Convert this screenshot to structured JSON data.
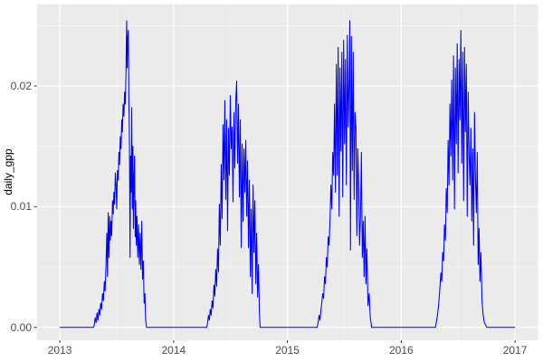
{
  "style": {
    "plot_background": "#FFFFFF",
    "panel_background": "#EBEBEB",
    "grid_major_color": "#FFFFFF",
    "grid_minor_color": "#FFFFFF",
    "line_color": "#0000FF",
    "tick_mark_color": "#333333",
    "tick_label_color": "#4D4D4D",
    "axis_title_color": "#000000"
  },
  "chart_data": {
    "type": "line",
    "title": "",
    "xlabel": "",
    "ylabel": "daily_gpp",
    "legend": "none",
    "grid": "major-and-minor",
    "xlim": [
      2012.798,
      2017.202
    ],
    "ylim": [
      -0.00107,
      0.02677
    ],
    "x_ticks": [
      2013,
      2014,
      2015,
      2016,
      2017
    ],
    "x_tick_labels": [
      "2013",
      "2014",
      "2015",
      "2016",
      "2017"
    ],
    "x_minor_ticks": [
      2013.5,
      2014.5,
      2015.5,
      2016.5
    ],
    "y_ticks": [
      0.0,
      0.01,
      0.02
    ],
    "y_tick_labels": [
      "0.00",
      "0.01",
      "0.02"
    ],
    "y_minor_ticks": [
      0.005,
      0.015,
      0.025
    ],
    "series": [
      {
        "name": "daily_gpp",
        "color": "#0000FF",
        "points": [
          [
            2013.0,
            0
          ],
          [
            2013.295,
            0
          ],
          [
            2013.303,
            0.0002
          ],
          [
            2013.311,
            0.0008
          ],
          [
            2013.319,
            0.0004
          ],
          [
            2013.327,
            0.0012
          ],
          [
            2013.335,
            0.0006
          ],
          [
            2013.343,
            0.0015
          ],
          [
            2013.351,
            0.001
          ],
          [
            2013.359,
            0.002
          ],
          [
            2013.367,
            0.0015
          ],
          [
            2013.375,
            0.0028
          ],
          [
            2013.383,
            0.0022
          ],
          [
            2013.391,
            0.0038
          ],
          [
            2013.398,
            0.003
          ],
          [
            2013.406,
            0.0052
          ],
          [
            2013.413,
            0.0078
          ],
          [
            2013.419,
            0.0042
          ],
          [
            2013.425,
            0.0095
          ],
          [
            2013.431,
            0.0058
          ],
          [
            2013.438,
            0.0092
          ],
          [
            2013.444,
            0.0072
          ],
          [
            2013.45,
            0.0088
          ],
          [
            2013.456,
            0.0076
          ],
          [
            2013.463,
            0.0105
          ],
          [
            2013.469,
            0.0094
          ],
          [
            2013.475,
            0.0112
          ],
          [
            2013.481,
            0.0102
          ],
          [
            2013.488,
            0.0128
          ],
          [
            2013.494,
            0.0118
          ],
          [
            2013.5,
            0.0098
          ],
          [
            2013.506,
            0.013
          ],
          [
            2013.513,
            0.0122
          ],
          [
            2013.519,
            0.0145
          ],
          [
            2013.525,
            0.0135
          ],
          [
            2013.531,
            0.0158
          ],
          [
            2013.538,
            0.0148
          ],
          [
            2013.544,
            0.0172
          ],
          [
            2013.55,
            0.0162
          ],
          [
            2013.556,
            0.0185
          ],
          [
            2013.563,
            0.0175
          ],
          [
            2013.569,
            0.0195
          ],
          [
            2013.575,
            0.0185
          ],
          [
            2013.581,
            0.0208
          ],
          [
            2013.587,
            0.0254
          ],
          [
            2013.592,
            0.0215
          ],
          [
            2013.597,
            0.024
          ],
          [
            2013.602,
            0.0246
          ],
          [
            2013.607,
            0.0188
          ],
          [
            2013.612,
            0.0152
          ],
          [
            2013.617,
            0.0058
          ],
          [
            2013.622,
            0.0142
          ],
          [
            2013.627,
            0.0112
          ],
          [
            2013.632,
            0.0182
          ],
          [
            2013.637,
            0.0098
          ],
          [
            2013.642,
            0.015
          ],
          [
            2013.647,
            0.0082
          ],
          [
            2013.652,
            0.0122
          ],
          [
            2013.657,
            0.0142
          ],
          [
            2013.662,
            0.0075
          ],
          [
            2013.667,
            0.0105
          ],
          [
            2013.672,
            0.0068
          ],
          [
            2013.678,
            0.0092
          ],
          [
            2013.685,
            0.0058
          ],
          [
            2013.692,
            0.0085
          ],
          [
            2013.699,
            0.0052
          ],
          [
            2013.706,
            0.0078
          ],
          [
            2013.713,
            0.0048
          ],
          [
            2013.72,
            0.0088
          ],
          [
            2013.727,
            0.004
          ],
          [
            2013.734,
            0.0055
          ],
          [
            2013.741,
            0.002
          ],
          [
            2013.748,
            0.0028
          ],
          [
            2013.754,
            0.0006
          ],
          [
            2013.762,
            0
          ],
          [
            2014.29,
            0
          ],
          [
            2014.298,
            0.0003
          ],
          [
            2014.306,
            0.001
          ],
          [
            2014.314,
            0.0006
          ],
          [
            2014.322,
            0.0015
          ],
          [
            2014.33,
            0.001
          ],
          [
            2014.338,
            0.0022
          ],
          [
            2014.346,
            0.0016
          ],
          [
            2014.354,
            0.0035
          ],
          [
            2014.362,
            0.0026
          ],
          [
            2014.37,
            0.0048
          ],
          [
            2014.378,
            0.0034
          ],
          [
            2014.386,
            0.0065
          ],
          [
            2014.394,
            0.0046
          ],
          [
            2014.402,
            0.0102
          ],
          [
            2014.41,
            0.0068
          ],
          [
            2014.418,
            0.0135
          ],
          [
            2014.426,
            0.009
          ],
          [
            2014.434,
            0.0168
          ],
          [
            2014.442,
            0.0122
          ],
          [
            2014.45,
            0.0188
          ],
          [
            2014.458,
            0.0106
          ],
          [
            2014.466,
            0.0172
          ],
          [
            2014.474,
            0.008
          ],
          [
            2014.482,
            0.0165
          ],
          [
            2014.49,
            0.0126
          ],
          [
            2014.498,
            0.0192
          ],
          [
            2014.506,
            0.0148
          ],
          [
            2014.514,
            0.0166
          ],
          [
            2014.522,
            0.0104
          ],
          [
            2014.53,
            0.0178
          ],
          [
            2014.538,
            0.0132
          ],
          [
            2014.546,
            0.0188
          ],
          [
            2014.554,
            0.0204
          ],
          [
            2014.562,
            0.0136
          ],
          [
            2014.57,
            0.0185
          ],
          [
            2014.578,
            0.0108
          ],
          [
            2014.586,
            0.0172
          ],
          [
            2014.594,
            0.0066
          ],
          [
            2014.602,
            0.0152
          ],
          [
            2014.61,
            0.0088
          ],
          [
            2014.618,
            0.0148
          ],
          [
            2014.626,
            0.0112
          ],
          [
            2014.634,
            0.0155
          ],
          [
            2014.642,
            0.0092
          ],
          [
            2014.65,
            0.0138
          ],
          [
            2014.658,
            0.0066
          ],
          [
            2014.666,
            0.0122
          ],
          [
            2014.674,
            0.0042
          ],
          [
            2014.682,
            0.0098
          ],
          [
            2014.69,
            0.0028
          ],
          [
            2014.698,
            0.0118
          ],
          [
            2014.706,
            0.0062
          ],
          [
            2014.714,
            0.0105
          ],
          [
            2014.722,
            0.0036
          ],
          [
            2014.73,
            0.0078
          ],
          [
            2014.738,
            0.0025
          ],
          [
            2014.746,
            0.0052
          ],
          [
            2014.754,
            0.0012
          ],
          [
            2014.76,
            0
          ],
          [
            2015.262,
            0
          ],
          [
            2015.27,
            0.0004
          ],
          [
            2015.278,
            0.001
          ],
          [
            2015.286,
            0.0006
          ],
          [
            2015.294,
            0.0014
          ],
          [
            2015.302,
            0.002
          ],
          [
            2015.31,
            0.0028
          ],
          [
            2015.318,
            0.0024
          ],
          [
            2015.326,
            0.0042
          ],
          [
            2015.334,
            0.0036
          ],
          [
            2015.342,
            0.0058
          ],
          [
            2015.35,
            0.005
          ],
          [
            2015.358,
            0.0075
          ],
          [
            2015.366,
            0.0068
          ],
          [
            2015.374,
            0.0088
          ],
          [
            2015.382,
            0.0118
          ],
          [
            2015.39,
            0.0098
          ],
          [
            2015.398,
            0.0145
          ],
          [
            2015.406,
            0.0126
          ],
          [
            2015.414,
            0.0185
          ],
          [
            2015.422,
            0.0112
          ],
          [
            2015.43,
            0.0218
          ],
          [
            2015.438,
            0.0126
          ],
          [
            2015.446,
            0.0232
          ],
          [
            2015.454,
            0.0092
          ],
          [
            2015.462,
            0.0215
          ],
          [
            2015.47,
            0.0146
          ],
          [
            2015.478,
            0.0228
          ],
          [
            2015.486,
            0.0108
          ],
          [
            2015.494,
            0.0238
          ],
          [
            2015.502,
            0.0152
          ],
          [
            2015.51,
            0.0222
          ],
          [
            2015.518,
            0.0118
          ],
          [
            2015.526,
            0.0242
          ],
          [
            2015.534,
            0.0166
          ],
          [
            2015.542,
            0.0205
          ],
          [
            2015.548,
            0.0254
          ],
          [
            2015.554,
            0.0064
          ],
          [
            2015.562,
            0.0241
          ],
          [
            2015.57,
            0.013
          ],
          [
            2015.578,
            0.0228
          ],
          [
            2015.586,
            0.0106
          ],
          [
            2015.594,
            0.0178
          ],
          [
            2015.602,
            0.0165
          ],
          [
            2015.61,
            0.0076
          ],
          [
            2015.618,
            0.0148
          ],
          [
            2015.626,
            0.0118
          ],
          [
            2015.634,
            0.0068
          ],
          [
            2015.642,
            0.0092
          ],
          [
            2015.65,
            0.0145
          ],
          [
            2015.658,
            0.0058
          ],
          [
            2015.666,
            0.0088
          ],
          [
            2015.674,
            0.0042
          ],
          [
            2015.682,
            0.0092
          ],
          [
            2015.69,
            0.0036
          ],
          [
            2015.698,
            0.0065
          ],
          [
            2015.708,
            0.0018
          ],
          [
            2015.718,
            0.0028
          ],
          [
            2015.728,
            0.0008
          ],
          [
            2015.74,
            0
          ],
          [
            2016.3,
            0
          ],
          [
            2016.308,
            0.0004
          ],
          [
            2016.318,
            0.001
          ],
          [
            2016.328,
            0.0018
          ],
          [
            2016.338,
            0.003
          ],
          [
            2016.348,
            0.0045
          ],
          [
            2016.356,
            0.0038
          ],
          [
            2016.364,
            0.0062
          ],
          [
            2016.372,
            0.0055
          ],
          [
            2016.38,
            0.0085
          ],
          [
            2016.388,
            0.0072
          ],
          [
            2016.396,
            0.0115
          ],
          [
            2016.404,
            0.0095
          ],
          [
            2016.412,
            0.0155
          ],
          [
            2016.42,
            0.0118
          ],
          [
            2016.428,
            0.0185
          ],
          [
            2016.436,
            0.0142
          ],
          [
            2016.444,
            0.0205
          ],
          [
            2016.452,
            0.0122
          ],
          [
            2016.46,
            0.0225
          ],
          [
            2016.468,
            0.0098
          ],
          [
            2016.476,
            0.0215
          ],
          [
            2016.484,
            0.0152
          ],
          [
            2016.492,
            0.0235
          ],
          [
            2016.5,
            0.0128
          ],
          [
            2016.508,
            0.0222
          ],
          [
            2016.516,
            0.0172
          ],
          [
            2016.524,
            0.0246
          ],
          [
            2016.532,
            0.0136
          ],
          [
            2016.54,
            0.0228
          ],
          [
            2016.548,
            0.0105
          ],
          [
            2016.556,
            0.0232
          ],
          [
            2016.564,
            0.0162
          ],
          [
            2016.572,
            0.0218
          ],
          [
            2016.58,
            0.0092
          ],
          [
            2016.588,
            0.0195
          ],
          [
            2016.596,
            0.0145
          ],
          [
            2016.604,
            0.0118
          ],
          [
            2016.612,
            0.0165
          ],
          [
            2016.62,
            0.0088
          ],
          [
            2016.628,
            0.0148
          ],
          [
            2016.636,
            0.0068
          ],
          [
            2016.644,
            0.0178
          ],
          [
            2016.652,
            0.0125
          ],
          [
            2016.66,
            0.0095
          ],
          [
            2016.668,
            0.0145
          ],
          [
            2016.676,
            0.0052
          ],
          [
            2016.684,
            0.0082
          ],
          [
            2016.692,
            0.0038
          ],
          [
            2016.7,
            0.0062
          ],
          [
            2016.71,
            0.0022
          ],
          [
            2016.72,
            0.001
          ],
          [
            2016.73,
            0.0004
          ],
          [
            2016.754,
            0
          ],
          [
            2017.0,
            0
          ]
        ]
      }
    ]
  }
}
